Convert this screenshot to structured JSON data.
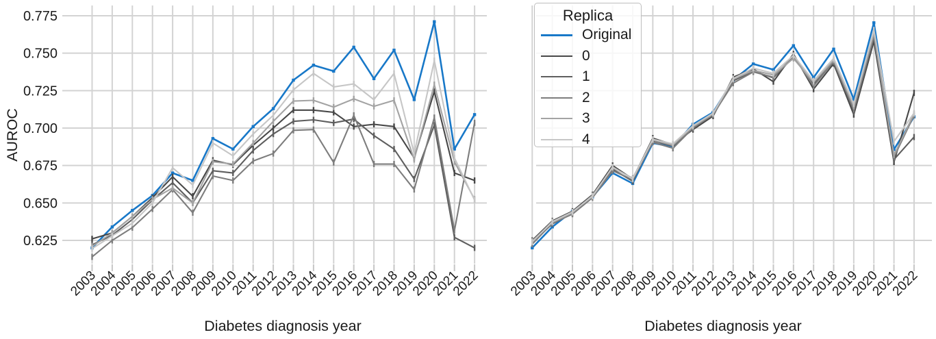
{
  "figure": {
    "ylabel": "AUROC",
    "xlabel": "Diabetes diagnosis year",
    "background": "#ffffff",
    "grid_color": "#d3d3d3",
    "tick_color": "#c6c6c6",
    "text_color": "#1a1a1a"
  },
  "legend": {
    "title": "Replica",
    "entries": [
      {
        "label": "Original",
        "color": "#1878c8",
        "weight": 3
      },
      {
        "label": "0",
        "color": "#474747",
        "weight": 2.5
      },
      {
        "label": "1",
        "color": "#5e5e5e",
        "weight": 2.5
      },
      {
        "label": "2",
        "color": "#7d7d7d",
        "weight": 2.5
      },
      {
        "label": "3",
        "color": "#a3a3a3",
        "weight": 2.5
      },
      {
        "label": "4",
        "color": "#c6c6c6",
        "weight": 2.5
      }
    ]
  },
  "chart_data": [
    {
      "type": "line",
      "panel": "left",
      "title": "",
      "xlabel": "Diabetes diagnosis year",
      "ylabel": "AUROC",
      "x": [
        2003,
        2004,
        2005,
        2006,
        2007,
        2008,
        2009,
        2010,
        2011,
        2012,
        2013,
        2014,
        2015,
        2016,
        2017,
        2018,
        2019,
        2020,
        2021,
        2022
      ],
      "ylim": [
        0.61,
        0.782
      ],
      "yticks": [
        0.775,
        0.75,
        0.725,
        0.7,
        0.675,
        0.65,
        0.625
      ],
      "ytick_labels": [
        "0.775",
        "0.750",
        "0.725",
        "0.700",
        "0.675",
        "0.650",
        "0.625"
      ],
      "grid": true,
      "legend_position": "upper-right",
      "series": [
        {
          "name": "Original",
          "color": "#1878c8",
          "values": [
            0.62,
            0.634,
            0.645,
            0.655,
            0.67,
            0.665,
            0.693,
            0.686,
            0.701,
            0.713,
            0.732,
            0.742,
            0.738,
            0.754,
            0.733,
            0.752,
            0.719,
            0.771,
            0.686,
            0.709
          ]
        },
        {
          "name": "0",
          "color": "#474747",
          "values": [
            0.626,
            0.63,
            0.641,
            0.6535,
            0.6675,
            0.6545,
            0.6785,
            0.6755,
            0.6885,
            0.7,
            0.712,
            0.712,
            0.7105,
            0.701,
            0.7025,
            0.701,
            0.68,
            0.7245,
            0.67,
            0.665
          ]
        },
        {
          "name": "1",
          "color": "#5e5e5e",
          "values": [
            0.622,
            0.6285,
            0.639,
            0.652,
            0.6635,
            0.65,
            0.6715,
            0.67,
            0.685,
            0.696,
            0.7045,
            0.7055,
            0.7035,
            0.706,
            0.695,
            0.686,
            0.666,
            0.702,
            0.627,
            0.62
          ]
        },
        {
          "name": "2",
          "color": "#7d7d7d",
          "values": [
            0.614,
            0.625,
            0.6335,
            0.646,
            0.659,
            0.6435,
            0.668,
            0.665,
            0.678,
            0.683,
            0.6985,
            0.699,
            0.677,
            0.7085,
            0.676,
            0.676,
            0.659,
            0.707,
            0.6315,
            0.7035
          ]
        },
        {
          "name": "3",
          "color": "#a3a3a3",
          "values": [
            0.621,
            0.63,
            0.641,
            0.6525,
            0.66,
            0.65,
            0.6775,
            0.676,
            0.69,
            0.7045,
            0.718,
            0.7185,
            0.714,
            0.7195,
            0.7145,
            0.7185,
            0.679,
            0.729,
            0.6775,
            0.6525
          ]
        },
        {
          "name": "4",
          "color": "#c6c6c6",
          "values": [
            0.6195,
            0.628,
            0.6365,
            0.65,
            0.6735,
            0.662,
            0.69,
            0.6815,
            0.696,
            0.7085,
            0.7255,
            0.7365,
            0.7275,
            0.7295,
            0.719,
            0.7365,
            0.683,
            0.745,
            0.68,
            0.652
          ]
        }
      ]
    },
    {
      "type": "line",
      "panel": "right",
      "title": "",
      "xlabel": "Diabetes diagnosis year",
      "ylabel": "",
      "x": [
        2003,
        2004,
        2005,
        2006,
        2007,
        2008,
        2009,
        2010,
        2011,
        2012,
        2013,
        2014,
        2015,
        2016,
        2017,
        2018,
        2019,
        2020,
        2021,
        2022
      ],
      "ylim": [
        0.61,
        0.782
      ],
      "yticks": [
        0.775,
        0.75,
        0.725,
        0.7,
        0.675,
        0.65,
        0.625
      ],
      "ytick_labels": [],
      "grid": true,
      "series": [
        {
          "name": "Original",
          "color": "#1878c8",
          "values": [
            0.62,
            0.634,
            0.6445,
            0.654,
            0.67,
            0.663,
            0.69,
            0.6875,
            0.7025,
            0.7105,
            0.732,
            0.7428,
            0.739,
            0.755,
            0.7337,
            0.7527,
            0.7192,
            0.7703,
            0.6857,
            0.7075
          ]
        },
        {
          "name": "0",
          "color": "#474747",
          "values": [
            0.625,
            0.638,
            0.6445,
            0.6555,
            0.675,
            0.666,
            0.6933,
            0.689,
            0.699,
            0.708,
            0.734,
            0.7395,
            0.731,
            0.7495,
            0.726,
            0.743,
            0.709,
            0.758,
            0.6773,
            0.7235
          ]
        },
        {
          "name": "1",
          "color": "#5e5e5e",
          "values": [
            0.6235,
            0.636,
            0.643,
            0.654,
            0.6725,
            0.6645,
            0.6915,
            0.688,
            0.7005,
            0.7085,
            0.7315,
            0.738,
            0.7335,
            0.7475,
            0.7295,
            0.744,
            0.711,
            0.76,
            0.679,
            0.694
          ]
        },
        {
          "name": "2",
          "color": "#7d7d7d",
          "values": [
            0.6225,
            0.6365,
            0.6425,
            0.6535,
            0.6715,
            0.6655,
            0.6905,
            0.6865,
            0.7,
            0.709,
            0.73,
            0.7375,
            0.734,
            0.748,
            0.728,
            0.7445,
            0.7125,
            0.7615,
            0.6805,
            0.7085
          ]
        },
        {
          "name": "3",
          "color": "#a3a3a3",
          "values": [
            0.6245,
            0.637,
            0.6435,
            0.655,
            0.6735,
            0.6665,
            0.692,
            0.6885,
            0.701,
            0.7095,
            0.7325,
            0.7385,
            0.7355,
            0.7465,
            0.7305,
            0.7455,
            0.7145,
            0.7635,
            0.682,
            0.7095
          ]
        },
        {
          "name": "4",
          "color": "#c6c6c6",
          "values": [
            0.624,
            0.6375,
            0.644,
            0.6545,
            0.674,
            0.666,
            0.6925,
            0.6895,
            0.7015,
            0.71,
            0.733,
            0.74,
            0.7365,
            0.7485,
            0.7315,
            0.7465,
            0.716,
            0.7655,
            0.691,
            0.71
          ]
        }
      ]
    }
  ]
}
